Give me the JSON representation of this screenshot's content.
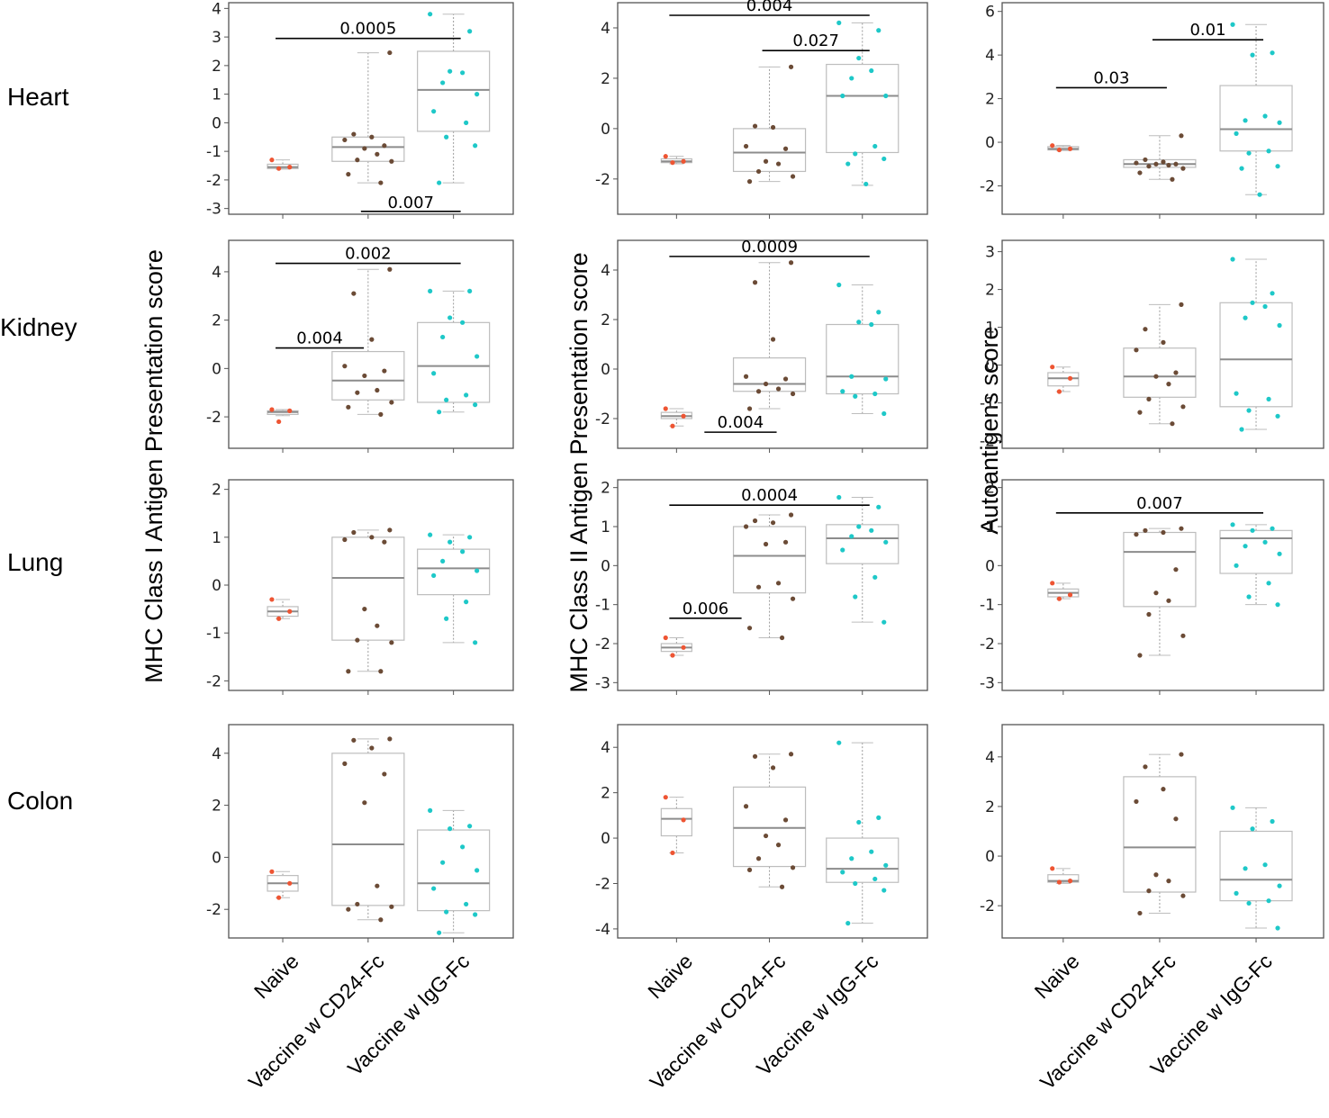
{
  "figure": {
    "row_labels": [
      "Heart",
      "Kidney",
      "Lung",
      "Colon"
    ],
    "column_ylabels": [
      "MHC Class I Antigen Presentation score",
      "MHC Class II Antigen Presentation score",
      "Autoantigens score"
    ],
    "groups": [
      "Naive",
      "Vaccine w CD24-Fc",
      "Vaccine w IgG-Fc"
    ],
    "colors": {
      "naive": "#ee5533",
      "cd24": "#6b4b36",
      "igg": "#1ec8c8",
      "box": "#bdbdbd",
      "median": "#8c8c8c",
      "frame": "#555555",
      "bracket": "#000000"
    }
  },
  "chart_data": [
    {
      "type": "box",
      "row": "Heart",
      "column": "MHC Class I Antigen Presentation score",
      "ylim": [
        -3.2,
        4.2
      ],
      "yticks": [
        4,
        3,
        2,
        1,
        0,
        -1,
        -2,
        -3
      ],
      "boxes": [
        {
          "group": "Naive",
          "q1": -1.6,
          "median": -1.55,
          "q3": -1.45,
          "whisker_low": -1.62,
          "whisker_high": -1.3,
          "points": [
            -1.3,
            -1.55,
            -1.6
          ]
        },
        {
          "group": "Vaccine w CD24-Fc",
          "q1": -1.35,
          "median": -0.85,
          "q3": -0.5,
          "whisker_low": -2.1,
          "whisker_high": 2.45,
          "points": [
            2.45,
            -0.4,
            -0.5,
            -0.6,
            -0.8,
            -0.9,
            -1.1,
            -1.3,
            -1.35,
            -1.8,
            -2.1
          ]
        },
        {
          "group": "Vaccine w IgG-Fc",
          "q1": -0.3,
          "median": 1.15,
          "q3": 2.5,
          "whisker_low": -2.1,
          "whisker_high": 3.8,
          "points": [
            3.8,
            3.2,
            1.8,
            1.75,
            1.4,
            1.0,
            0.4,
            0.0,
            -0.5,
            -0.8,
            -2.1
          ]
        }
      ],
      "brackets": [
        {
          "from": "Naive",
          "to": "Vaccine w IgG-Fc",
          "y": 2.95,
          "label": "0.0005"
        },
        {
          "from": "Vaccine w CD24-Fc",
          "to": "Vaccine w IgG-Fc",
          "y": -3.1,
          "label": "0.007",
          "label_below": true
        }
      ]
    },
    {
      "type": "box",
      "row": "Heart",
      "column": "MHC Class II Antigen Presentation score",
      "ylim": [
        -3.4,
        5.0
      ],
      "yticks": [
        4,
        2,
        0,
        -2
      ],
      "boxes": [
        {
          "group": "Naive",
          "q1": -1.35,
          "median": -1.3,
          "q3": -1.2,
          "whisker_low": -1.4,
          "whisker_high": -1.1,
          "points": [
            -1.1,
            -1.3,
            -1.35
          ]
        },
        {
          "group": "Vaccine w CD24-Fc",
          "q1": -1.7,
          "median": -0.95,
          "q3": 0.0,
          "whisker_low": -2.1,
          "whisker_high": 2.45,
          "points": [
            2.45,
            0.1,
            0.05,
            -0.7,
            -0.8,
            -1.3,
            -1.4,
            -1.7,
            -1.9,
            -2.1
          ]
        },
        {
          "group": "Vaccine w IgG-Fc",
          "q1": -0.95,
          "median": 1.3,
          "q3": 2.55,
          "whisker_low": -2.25,
          "whisker_high": 4.2,
          "points": [
            4.2,
            3.9,
            2.8,
            2.3,
            2.0,
            1.3,
            1.3,
            -0.7,
            -1.0,
            -1.2,
            -1.4,
            -2.2
          ]
        }
      ],
      "brackets": [
        {
          "from": "Naive",
          "to": "Vaccine w IgG-Fc",
          "y": 4.5,
          "label": "0.004"
        },
        {
          "from": "Vaccine w CD24-Fc",
          "to": "Vaccine w IgG-Fc",
          "y": 3.1,
          "label": "0.027"
        }
      ]
    },
    {
      "type": "box",
      "row": "Heart",
      "column": "Autoantigens score",
      "ylim": [
        -3.3,
        6.4
      ],
      "yticks": [
        6,
        4,
        2,
        0,
        -2
      ],
      "boxes": [
        {
          "group": "Naive",
          "q1": -0.35,
          "median": -0.3,
          "q3": -0.2,
          "whisker_low": -0.38,
          "whisker_high": -0.15,
          "points": [
            -0.15,
            -0.3,
            -0.35
          ]
        },
        {
          "group": "Vaccine w CD24-Fc",
          "q1": -1.15,
          "median": -1.0,
          "q3": -0.8,
          "whisker_low": -1.7,
          "whisker_high": 0.3,
          "points": [
            0.3,
            -0.8,
            -0.9,
            -0.95,
            -1.0,
            -1.0,
            -1.05,
            -1.1,
            -1.2,
            -1.4,
            -1.7
          ]
        },
        {
          "group": "Vaccine w IgG-Fc",
          "q1": -0.4,
          "median": 0.6,
          "q3": 2.6,
          "whisker_low": -2.4,
          "whisker_high": 5.4,
          "points": [
            5.4,
            4.1,
            4.0,
            1.2,
            1.0,
            0.9,
            0.4,
            -0.4,
            -0.5,
            -1.1,
            -1.2,
            -2.4
          ]
        }
      ],
      "brackets": [
        {
          "from": "Naive",
          "to": "Vaccine w CD24-Fc",
          "y": 2.5,
          "label": "0.03"
        },
        {
          "from": "Vaccine w CD24-Fc",
          "to": "Vaccine w IgG-Fc",
          "y": 4.7,
          "label": "0.01"
        }
      ]
    },
    {
      "type": "box",
      "row": "Kidney",
      "column": "MHC Class I Antigen Presentation score",
      "ylim": [
        -3.3,
        5.3
      ],
      "yticks": [
        4,
        2,
        0,
        -2
      ],
      "boxes": [
        {
          "group": "Naive",
          "q1": -1.9,
          "median": -1.8,
          "q3": -1.75,
          "whisker_low": -1.95,
          "whisker_high": -1.7,
          "points": [
            -1.7,
            -1.75,
            -2.2
          ]
        },
        {
          "group": "Vaccine w CD24-Fc",
          "q1": -1.3,
          "median": -0.5,
          "q3": 0.7,
          "whisker_low": -1.9,
          "whisker_high": 4.1,
          "points": [
            4.1,
            3.1,
            1.2,
            0.1,
            -0.1,
            -0.3,
            -0.9,
            -1.0,
            -1.4,
            -1.6,
            -1.9
          ]
        },
        {
          "group": "Vaccine w IgG-Fc",
          "q1": -1.4,
          "median": 0.1,
          "q3": 1.9,
          "whisker_low": -1.8,
          "whisker_high": 3.2,
          "points": [
            3.2,
            3.2,
            2.1,
            1.9,
            1.3,
            0.5,
            -0.2,
            -1.1,
            -1.3,
            -1.5,
            -1.8
          ]
        }
      ],
      "brackets": [
        {
          "from": "Naive",
          "to": "Vaccine w IgG-Fc",
          "y": 4.35,
          "label": "0.002"
        },
        {
          "from": "Naive",
          "to": "Vaccine w CD24-Fc",
          "y": 0.85,
          "label": "0.004",
          "right_end": 0.95
        }
      ]
    },
    {
      "type": "box",
      "row": "Kidney",
      "column": "MHC Class II Antigen Presentation score",
      "ylim": [
        -3.2,
        5.2
      ],
      "yticks": [
        4,
        2,
        0,
        -2
      ],
      "boxes": [
        {
          "group": "Naive",
          "q1": -2.0,
          "median": -1.9,
          "q3": -1.75,
          "whisker_low": -2.3,
          "whisker_high": -1.6,
          "points": [
            -1.6,
            -1.9,
            -2.3
          ]
        },
        {
          "group": "Vaccine w CD24-Fc",
          "q1": -0.9,
          "median": -0.6,
          "q3": 0.45,
          "whisker_low": -1.6,
          "whisker_high": 4.3,
          "points": [
            4.3,
            3.5,
            1.2,
            -0.3,
            -0.4,
            -0.6,
            -0.8,
            -0.9,
            -1.0,
            -1.6
          ]
        },
        {
          "group": "Vaccine w IgG-Fc",
          "q1": -1.0,
          "median": -0.3,
          "q3": 1.8,
          "whisker_low": -1.8,
          "whisker_high": 3.4,
          "points": [
            3.4,
            2.3,
            1.9,
            1.8,
            -0.3,
            -0.4,
            -0.9,
            -1.0,
            -1.1,
            -1.8
          ]
        }
      ],
      "brackets": [
        {
          "from": "Naive",
          "to": "Vaccine w IgG-Fc",
          "y": 4.55,
          "label": "0.0009"
        },
        {
          "from": "Naive",
          "to": "Vaccine w CD24-Fc",
          "y": -2.55,
          "label": "0.004",
          "label_above": true,
          "left_start": 0.3
        }
      ]
    },
    {
      "type": "box",
      "row": "Kidney",
      "column": "Autoantigens score",
      "ylim": [
        -2.2,
        3.3
      ],
      "yticks": [
        3,
        2,
        1,
        0,
        -1,
        -2
      ],
      "boxes": [
        {
          "group": "Naive",
          "q1": -0.55,
          "median": -0.35,
          "q3": -0.2,
          "whisker_low": -0.7,
          "whisker_high": -0.05,
          "points": [
            -0.05,
            -0.35,
            -0.7
          ]
        },
        {
          "group": "Vaccine w CD24-Fc",
          "q1": -0.85,
          "median": -0.3,
          "q3": 0.45,
          "whisker_low": -1.55,
          "whisker_high": 1.6,
          "points": [
            1.6,
            0.95,
            0.6,
            0.4,
            -0.2,
            -0.3,
            -0.5,
            -0.9,
            -1.1,
            -1.25,
            -1.55
          ]
        },
        {
          "group": "Vaccine w IgG-Fc",
          "q1": -1.1,
          "median": 0.15,
          "q3": 1.65,
          "whisker_low": -1.7,
          "whisker_high": 2.8,
          "points": [
            2.8,
            1.9,
            1.65,
            1.55,
            1.25,
            1.05,
            -0.75,
            -0.9,
            -1.2,
            -1.35,
            -1.7
          ]
        }
      ],
      "brackets": []
    },
    {
      "type": "box",
      "row": "Lung",
      "column": "MHC Class I Antigen Presentation score",
      "ylim": [
        -2.2,
        2.2
      ],
      "yticks": [
        2,
        1,
        0,
        -1,
        -2
      ],
      "boxes": [
        {
          "group": "Naive",
          "q1": -0.65,
          "median": -0.55,
          "q3": -0.45,
          "whisker_low": -0.7,
          "whisker_high": -0.3,
          "points": [
            -0.3,
            -0.55,
            -0.7
          ]
        },
        {
          "group": "Vaccine w CD24-Fc",
          "q1": -1.15,
          "median": 0.15,
          "q3": 1.0,
          "whisker_low": -1.8,
          "whisker_high": 1.15,
          "points": [
            1.15,
            1.1,
            1.0,
            0.95,
            0.9,
            -0.5,
            -0.85,
            -1.15,
            -1.2,
            -1.8,
            -1.8
          ]
        },
        {
          "group": "Vaccine w IgG-Fc",
          "q1": -0.2,
          "median": 0.35,
          "q3": 0.75,
          "whisker_low": -1.2,
          "whisker_high": 1.05,
          "points": [
            1.05,
            1.0,
            0.9,
            0.7,
            0.5,
            0.3,
            0.2,
            -0.35,
            -0.7,
            -1.2
          ]
        }
      ],
      "brackets": []
    },
    {
      "type": "box",
      "row": "Lung",
      "column": "MHC Class II Antigen Presentation score",
      "ylim": [
        -3.2,
        2.2
      ],
      "yticks": [
        2,
        1,
        0,
        -1,
        -2,
        -3
      ],
      "boxes": [
        {
          "group": "Naive",
          "q1": -2.2,
          "median": -2.1,
          "q3": -2.0,
          "whisker_low": -2.3,
          "whisker_high": -1.85,
          "points": [
            -1.85,
            -2.1,
            -2.3
          ]
        },
        {
          "group": "Vaccine w CD24-Fc",
          "q1": -0.7,
          "median": 0.25,
          "q3": 1.0,
          "whisker_low": -1.85,
          "whisker_high": 1.3,
          "points": [
            1.3,
            1.15,
            1.1,
            1.0,
            0.6,
            0.55,
            -0.45,
            -0.55,
            -0.85,
            -1.6,
            -1.85
          ]
        },
        {
          "group": "Vaccine w IgG-Fc",
          "q1": 0.05,
          "median": 0.7,
          "q3": 1.05,
          "whisker_low": -1.45,
          "whisker_high": 1.75,
          "points": [
            1.75,
            1.5,
            1.0,
            0.9,
            0.75,
            0.6,
            0.4,
            -0.3,
            -0.8,
            -1.45
          ]
        }
      ],
      "brackets": [
        {
          "from": "Naive",
          "to": "Vaccine w IgG-Fc",
          "y": 1.55,
          "label": "0.0004"
        },
        {
          "from": "Naive",
          "to": "Vaccine w CD24-Fc",
          "y": -1.35,
          "label": "0.006",
          "right_end": 0.7
        }
      ]
    },
    {
      "type": "box",
      "row": "Lung",
      "column": "Autoantigens score",
      "ylim": [
        -3.2,
        2.2
      ],
      "yticks": [
        2,
        1,
        0,
        -1,
        -2,
        -3
      ],
      "boxes": [
        {
          "group": "Naive",
          "q1": -0.8,
          "median": -0.7,
          "q3": -0.6,
          "whisker_low": -0.85,
          "whisker_high": -0.45,
          "points": [
            -0.45,
            -0.75,
            -0.85
          ]
        },
        {
          "group": "Vaccine w CD24-Fc",
          "q1": -1.05,
          "median": 0.35,
          "q3": 0.85,
          "whisker_low": -2.3,
          "whisker_high": 0.95,
          "points": [
            0.95,
            0.9,
            0.85,
            0.8,
            -0.1,
            -0.7,
            -0.9,
            -1.25,
            -1.8,
            -2.3
          ]
        },
        {
          "group": "Vaccine w IgG-Fc",
          "q1": -0.2,
          "median": 0.7,
          "q3": 0.9,
          "whisker_low": -1.0,
          "whisker_high": 1.05,
          "points": [
            1.05,
            0.95,
            0.9,
            0.6,
            0.5,
            0.3,
            0.0,
            -0.45,
            -0.8,
            -1.0
          ]
        }
      ],
      "brackets": [
        {
          "from": "Naive",
          "to": "Vaccine w IgG-Fc",
          "y": 1.35,
          "label": "0.007"
        }
      ]
    },
    {
      "type": "box",
      "row": "Colon",
      "column": "MHC Class I Antigen Presentation score",
      "ylim": [
        -3.1,
        5.1
      ],
      "yticks": [
        4,
        2,
        0,
        -2
      ],
      "boxes": [
        {
          "group": "Naive",
          "q1": -1.3,
          "median": -1.0,
          "q3": -0.7,
          "whisker_low": -1.55,
          "whisker_high": -0.55,
          "points": [
            -0.55,
            -1.0,
            -1.55
          ]
        },
        {
          "group": "Vaccine w CD24-Fc",
          "q1": -1.85,
          "median": 0.5,
          "q3": 4.0,
          "whisker_low": -2.4,
          "whisker_high": 4.55,
          "points": [
            4.55,
            4.5,
            4.2,
            3.6,
            3.2,
            2.1,
            -1.1,
            -1.8,
            -1.9,
            -2.0,
            -2.4
          ]
        },
        {
          "group": "Vaccine w IgG-Fc",
          "q1": -2.05,
          "median": -1.0,
          "q3": 1.05,
          "whisker_low": -2.9,
          "whisker_high": 1.8,
          "points": [
            1.8,
            1.2,
            1.1,
            0.4,
            -0.2,
            -0.5,
            -1.2,
            -1.8,
            -2.1,
            -2.2,
            -2.9
          ]
        }
      ],
      "brackets": []
    },
    {
      "type": "box",
      "row": "Colon",
      "column": "MHC Class II Antigen Presentation score",
      "ylim": [
        -4.4,
        5.0
      ],
      "yticks": [
        4,
        2,
        0,
        -2,
        -4
      ],
      "boxes": [
        {
          "group": "Naive",
          "q1": 0.1,
          "median": 0.85,
          "q3": 1.3,
          "whisker_low": -0.65,
          "whisker_high": 1.8,
          "points": [
            1.8,
            0.8,
            -0.65
          ]
        },
        {
          "group": "Vaccine w CD24-Fc",
          "q1": -1.25,
          "median": 0.45,
          "q3": 2.25,
          "whisker_low": -2.15,
          "whisker_high": 3.7,
          "points": [
            3.7,
            3.6,
            3.1,
            1.4,
            0.8,
            0.1,
            -0.3,
            -0.9,
            -1.3,
            -1.4,
            -2.15
          ]
        },
        {
          "group": "Vaccine w IgG-Fc",
          "q1": -1.95,
          "median": -1.35,
          "q3": 0.0,
          "whisker_low": -3.75,
          "whisker_high": 4.2,
          "points": [
            4.2,
            0.9,
            0.7,
            -0.6,
            -0.9,
            -1.2,
            -1.5,
            -1.8,
            -2.0,
            -2.3,
            -3.75
          ]
        }
      ],
      "brackets": []
    },
    {
      "type": "box",
      "row": "Colon",
      "column": "Autoantigens score",
      "ylim": [
        -3.3,
        5.3
      ],
      "yticks": [
        4,
        2,
        0,
        -2
      ],
      "boxes": [
        {
          "group": "Naive",
          "q1": -1.05,
          "median": -1.0,
          "q3": -0.75,
          "whisker_low": -1.1,
          "whisker_high": -0.5,
          "points": [
            -0.5,
            -1.0,
            -1.05
          ]
        },
        {
          "group": "Vaccine w CD24-Fc",
          "q1": -1.45,
          "median": 0.35,
          "q3": 3.2,
          "whisker_low": -2.3,
          "whisker_high": 4.1,
          "points": [
            4.1,
            3.6,
            2.7,
            2.2,
            1.5,
            -0.75,
            -1.0,
            -1.4,
            -1.6,
            -2.3
          ]
        },
        {
          "group": "Vaccine w IgG-Fc",
          "q1": -1.8,
          "median": -0.95,
          "q3": 1.0,
          "whisker_low": -2.9,
          "whisker_high": 1.95,
          "points": [
            1.95,
            1.4,
            1.1,
            -0.35,
            -0.5,
            -1.2,
            -1.5,
            -1.8,
            -1.9,
            -2.9
          ]
        }
      ],
      "brackets": []
    }
  ]
}
